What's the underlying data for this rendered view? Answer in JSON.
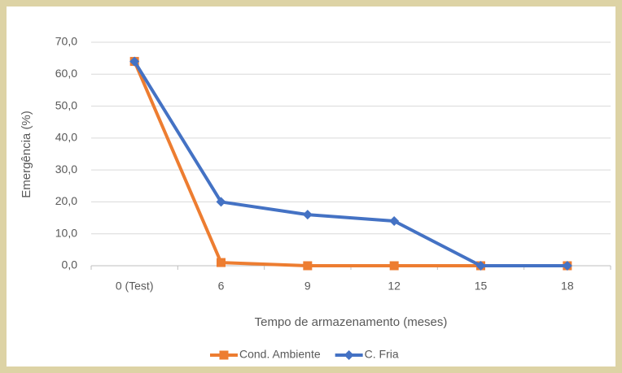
{
  "chart_data": {
    "type": "line",
    "y_label": "Emergência (%)",
    "x_label": "Tempo de armazenamento (meses)",
    "categories": [
      "0 (Test)",
      "6",
      "9",
      "12",
      "15",
      "18"
    ],
    "series": [
      {
        "name": "Cond. Ambiente",
        "color": "#ed7d31",
        "marker": "square",
        "values": [
          64,
          1,
          0,
          0,
          0,
          0
        ]
      },
      {
        "name": "C. Fria",
        "color": "#4472c4",
        "marker": "diamond",
        "values": [
          64,
          20,
          16,
          14,
          0,
          0
        ]
      }
    ],
    "ylim": [
      0,
      70
    ],
    "yticks": [
      {
        "value": 0,
        "label": "0,0"
      },
      {
        "value": 10,
        "label": "10,0"
      },
      {
        "value": 20,
        "label": "20,0"
      },
      {
        "value": 30,
        "label": "30,0"
      },
      {
        "value": 40,
        "label": "40,0"
      },
      {
        "value": 50,
        "label": "50,0"
      },
      {
        "value": 60,
        "label": "60,0"
      },
      {
        "value": 70,
        "label": "70,0"
      }
    ],
    "grid": true,
    "legend": "bottom"
  }
}
